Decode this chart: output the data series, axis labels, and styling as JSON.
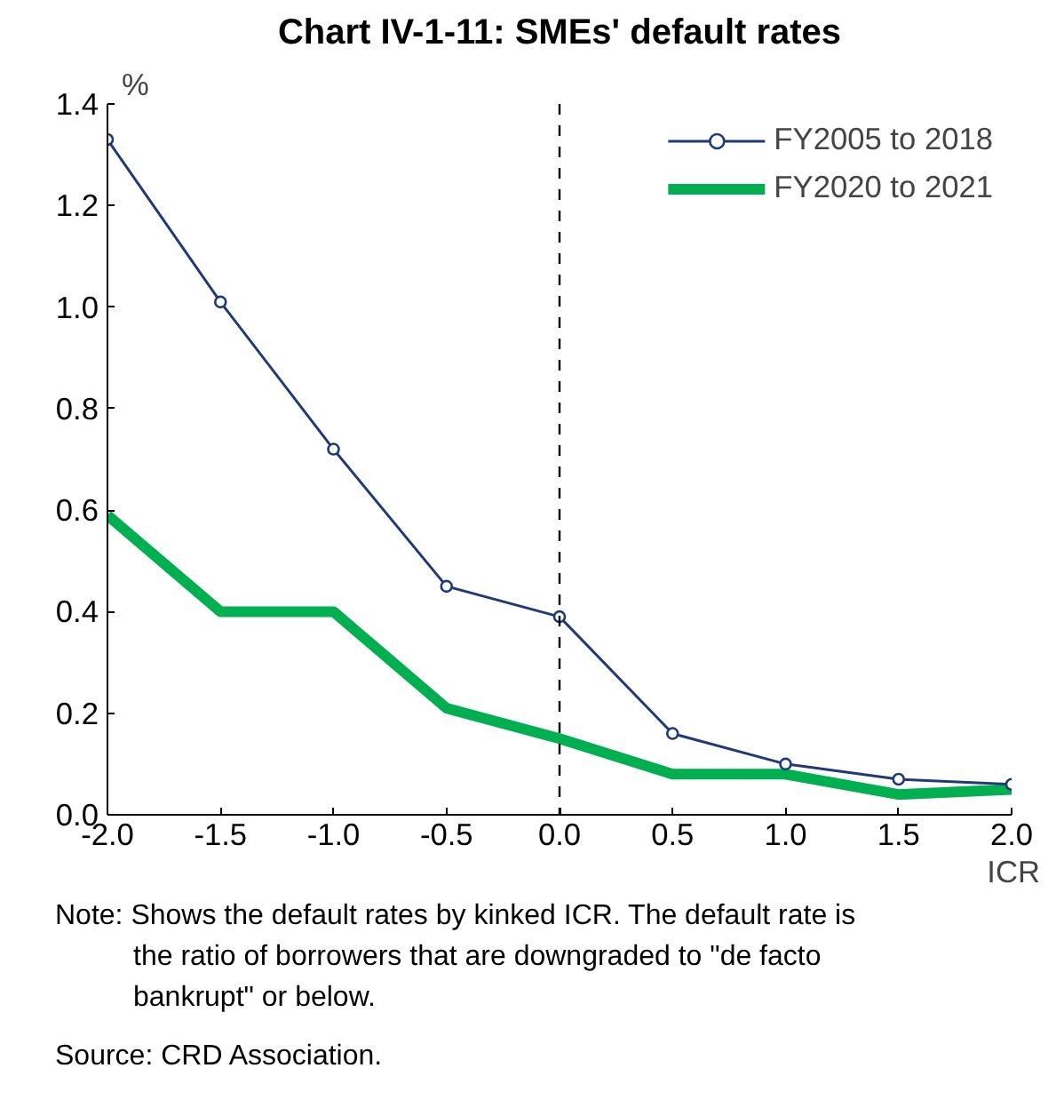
{
  "chart_data": {
    "type": "line",
    "title": "Chart IV-1-11: SMEs' default rates",
    "xlabel": "ICR",
    "ylabel": "%",
    "x": [
      -2.0,
      -1.5,
      -1.0,
      -0.5,
      0.0,
      0.5,
      1.0,
      1.5,
      2.0
    ],
    "series": [
      {
        "name": "FY2005 to 2018",
        "color": "#1f3a7a",
        "marker": "circle",
        "values": [
          1.33,
          1.01,
          0.72,
          0.45,
          0.39,
          0.16,
          0.1,
          0.07,
          0.06
        ]
      },
      {
        "name": "FY2020 to 2021",
        "color": "#00b050",
        "marker": "none",
        "values": [
          0.59,
          0.4,
          0.4,
          0.21,
          0.15,
          0.08,
          0.08,
          0.04,
          0.05
        ]
      }
    ],
    "xlim": [
      -2.0,
      2.0
    ],
    "xticks": [
      {
        "value": -2.0,
        "label": "-2.0"
      },
      {
        "value": -1.5,
        "label": "-1.5"
      },
      {
        "value": -1.0,
        "label": "-1.0"
      },
      {
        "value": -0.5,
        "label": "-0.5"
      },
      {
        "value": 0.0,
        "label": "0.0"
      },
      {
        "value": 0.5,
        "label": "0.5"
      },
      {
        "value": 1.0,
        "label": "1.0"
      },
      {
        "value": 1.5,
        "label": "1.5"
      },
      {
        "value": 2.0,
        "label": "2.0"
      }
    ],
    "ylim": [
      0.0,
      1.4
    ],
    "yticks": [
      {
        "value": 0.0,
        "label": "0.0"
      },
      {
        "value": 0.2,
        "label": "0.2"
      },
      {
        "value": 0.4,
        "label": "0.4"
      },
      {
        "value": 0.6,
        "label": "0.6"
      },
      {
        "value": 0.8,
        "label": "0.8"
      },
      {
        "value": 1.0,
        "label": "1.0"
      },
      {
        "value": 1.2,
        "label": "1.2"
      },
      {
        "value": 1.4,
        "label": "1.4"
      }
    ],
    "ref_lines": [
      {
        "axis": "x",
        "value": 0.0,
        "color": "#000000",
        "line_style": "dashed"
      }
    ],
    "grid": false,
    "legend": "top right",
    "line_style": "solid",
    "annotations": [
      "Note: Shows the default rates by kinked ICR. The default rate is the ratio of borrowers that are downgraded to \"de facto bankrupt\" or below.",
      "Source: CRD Association."
    ]
  }
}
